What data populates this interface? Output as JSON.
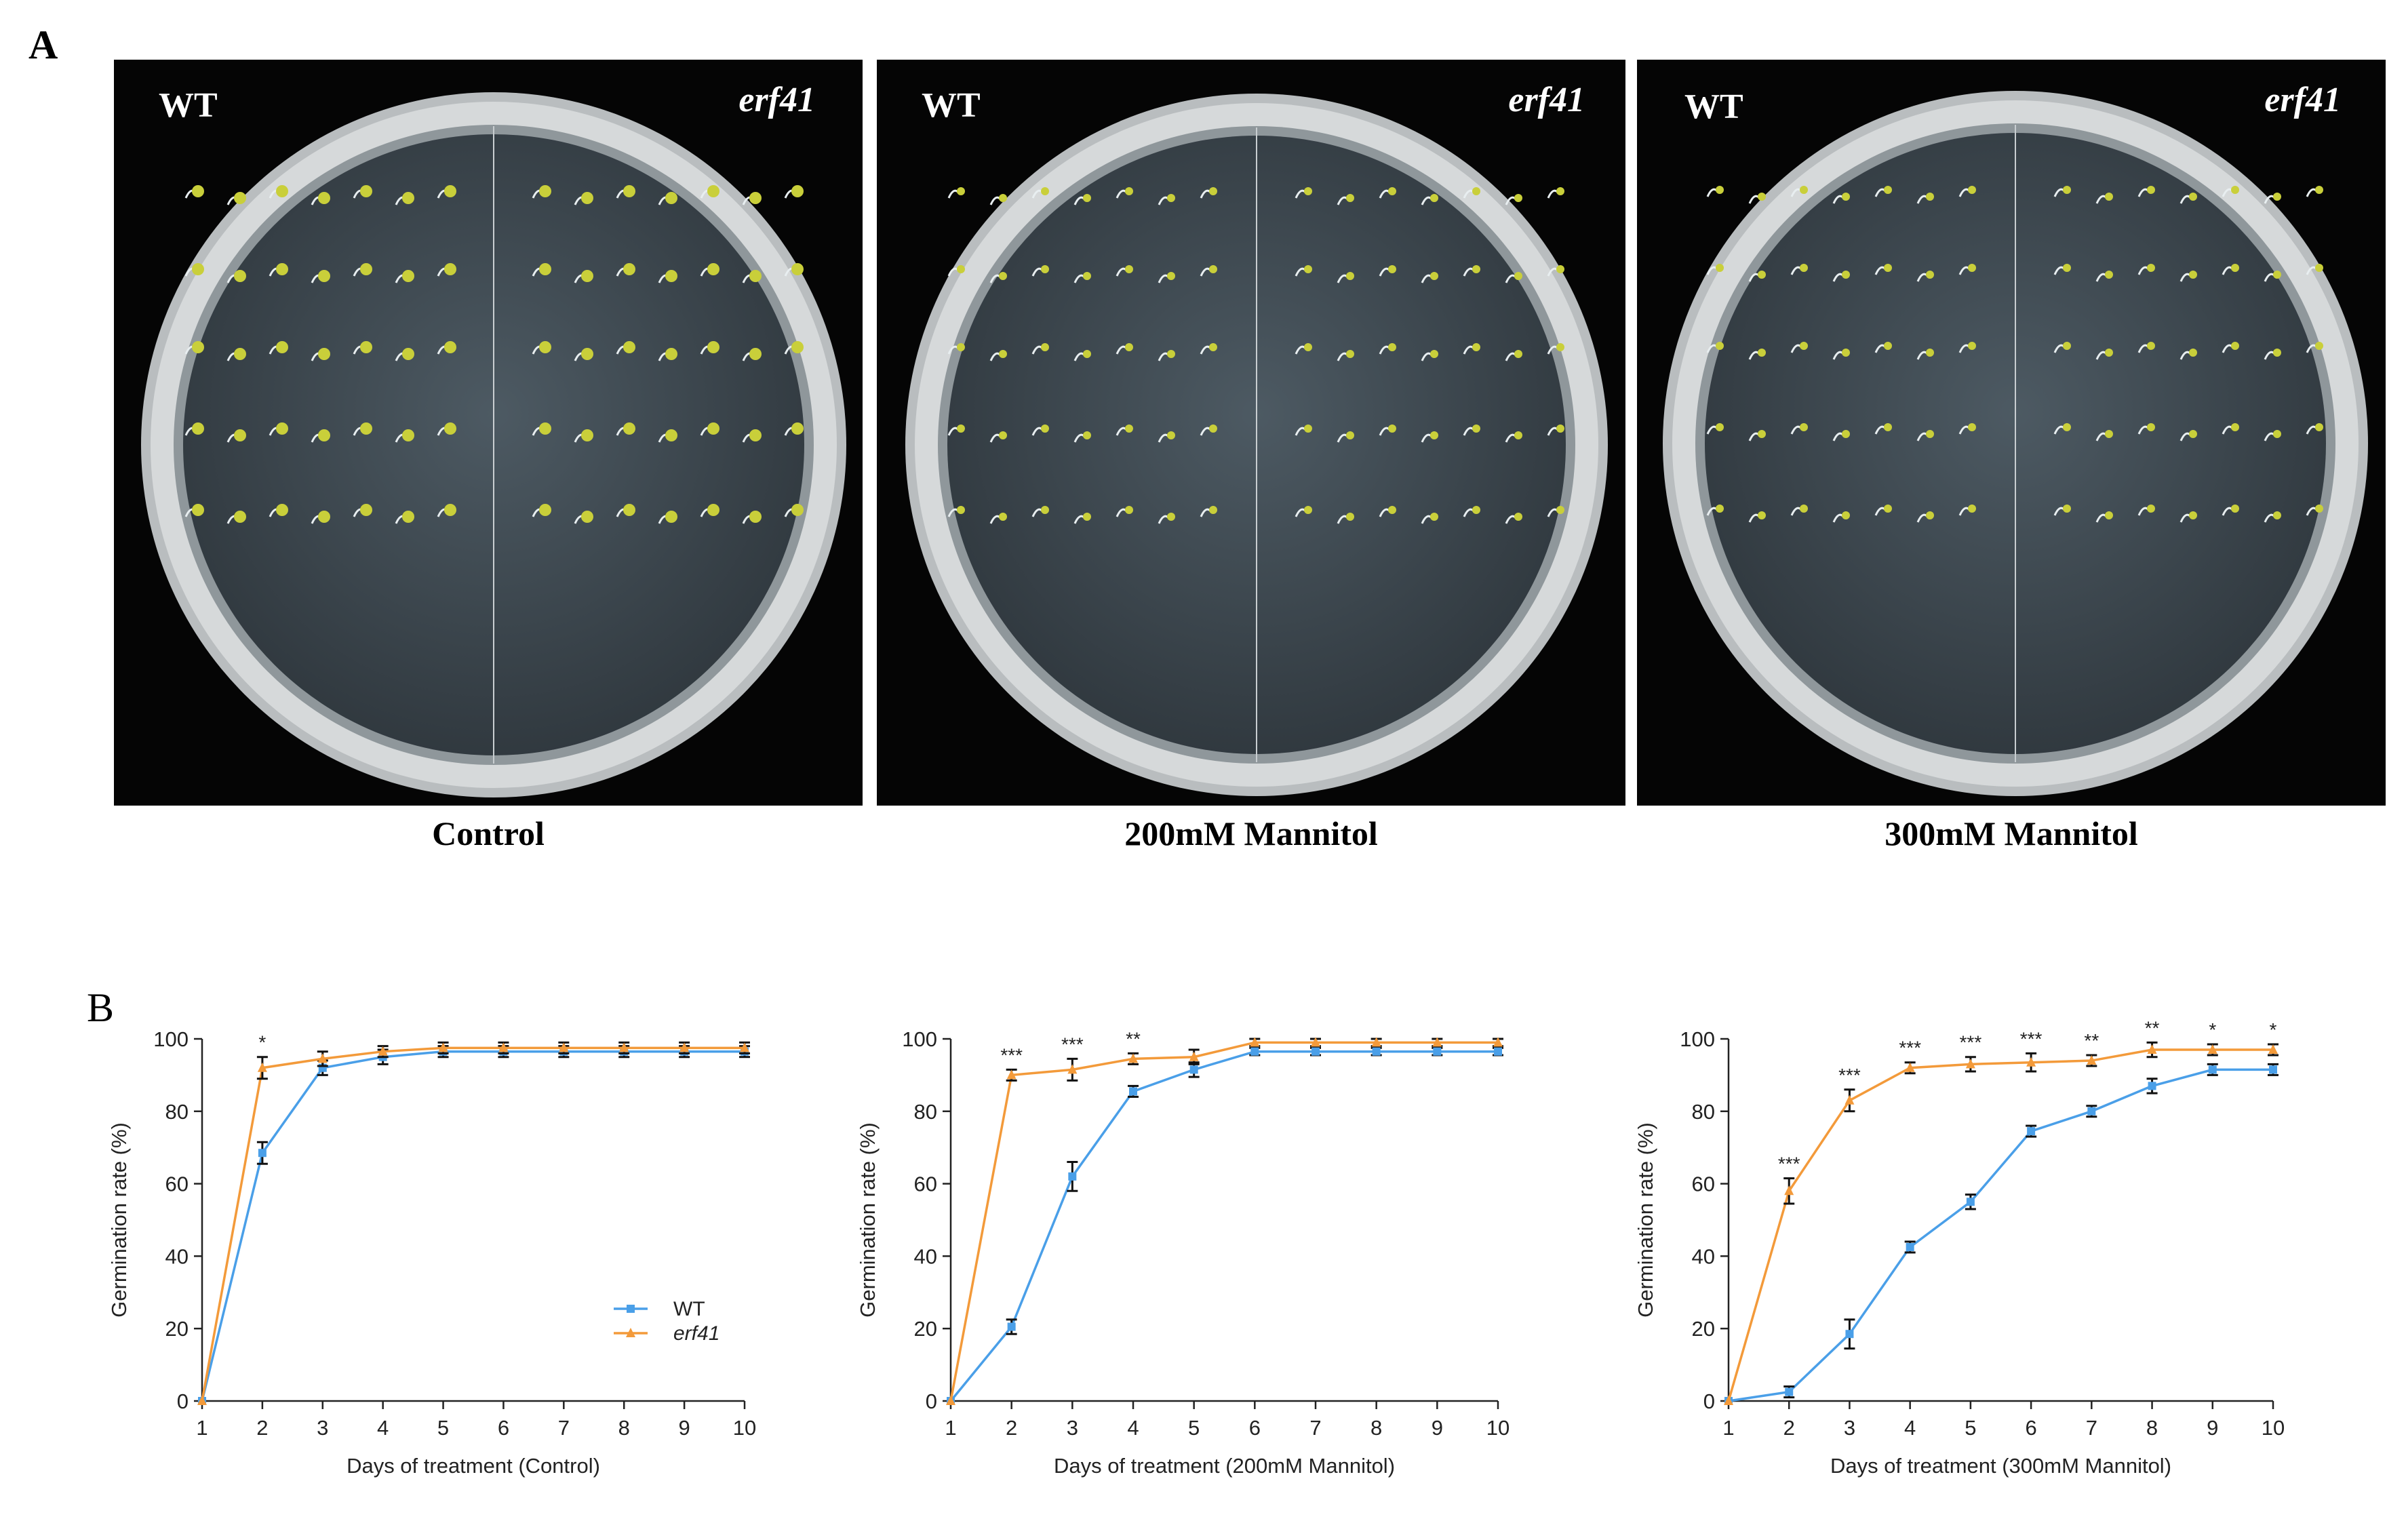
{
  "panels": {
    "a": "A",
    "b": "B"
  },
  "photos": [
    {
      "left_label": "WT",
      "right_label": "erf41",
      "caption": "Control"
    },
    {
      "left_label": "WT",
      "right_label": "erf41",
      "caption": "200mM Mannitol"
    },
    {
      "left_label": "WT",
      "right_label": "erf41",
      "caption": "300mM Mannitol"
    }
  ],
  "colors": {
    "wt": "#4a9fe8",
    "erf41": "#f39a3a",
    "seedling": "#c9cf3a"
  },
  "chart_data": [
    {
      "type": "line",
      "xlabel": "Days of treatment (Control)",
      "ylabel": "Germination rate (%)",
      "x": [
        1,
        2,
        3,
        4,
        5,
        6,
        7,
        8,
        9,
        10
      ],
      "xlim": [
        1,
        10
      ],
      "ylim": [
        0,
        100
      ],
      "yticks": [
        0,
        20,
        40,
        60,
        80,
        100
      ],
      "legend": {
        "placement": "center-right",
        "entries": [
          "WT",
          "erf41"
        ]
      },
      "series": [
        {
          "name": "WT",
          "marker": "square",
          "values": [
            0,
            68.5,
            92,
            95,
            96.5,
            96.5,
            96.5,
            96.5,
            96.5,
            96.5
          ],
          "errors": [
            0,
            3,
            2,
            2,
            1.5,
            1.5,
            1.5,
            1.5,
            1.5,
            1.5
          ]
        },
        {
          "name": "erf41",
          "marker": "triangle",
          "values": [
            0,
            92,
            94.5,
            96.5,
            97.5,
            97.5,
            97.5,
            97.5,
            97.5,
            97.5
          ],
          "errors": [
            0,
            3,
            2,
            1.5,
            1.5,
            1.5,
            1.5,
            1.5,
            1.5,
            1.5
          ]
        }
      ],
      "significance": [
        "",
        "*",
        "",
        "",
        "",
        "",
        "",
        "",
        "",
        ""
      ]
    },
    {
      "type": "line",
      "xlabel": "Days of treatment (200mM Mannitol)",
      "ylabel": "Germination rate (%)",
      "x": [
        1,
        2,
        3,
        4,
        5,
        6,
        7,
        8,
        9,
        10
      ],
      "xlim": [
        1,
        10
      ],
      "ylim": [
        0,
        100
      ],
      "yticks": [
        0,
        20,
        40,
        60,
        80,
        100
      ],
      "series": [
        {
          "name": "WT",
          "marker": "square",
          "values": [
            0,
            20.5,
            62,
            85.5,
            91.5,
            96.5,
            96.5,
            96.5,
            96.5,
            96.5
          ],
          "errors": [
            0,
            2,
            4,
            1.5,
            2,
            1,
            1,
            1,
            1,
            1
          ]
        },
        {
          "name": "erf41",
          "marker": "triangle",
          "values": [
            0,
            90,
            91.5,
            94.5,
            95,
            99,
            99,
            99,
            99,
            99
          ],
          "errors": [
            0,
            1.5,
            3,
            1.5,
            2,
            1,
            1,
            1,
            1,
            1
          ]
        }
      ],
      "significance": [
        "",
        "***",
        "***",
        "**",
        "",
        "",
        "",
        "",
        "",
        ""
      ]
    },
    {
      "type": "line",
      "xlabel": "Days of treatment (300mM Mannitol)",
      "ylabel": "Germination rate (%)",
      "x": [
        1,
        2,
        3,
        4,
        5,
        6,
        7,
        8,
        9,
        10
      ],
      "xlim": [
        1,
        10
      ],
      "ylim": [
        0,
        100
      ],
      "yticks": [
        0,
        20,
        40,
        60,
        80,
        100
      ],
      "series": [
        {
          "name": "WT",
          "marker": "square",
          "values": [
            0,
            2.5,
            18.5,
            42.5,
            55,
            74.5,
            80,
            87,
            91.5,
            91.5
          ],
          "errors": [
            0,
            1.5,
            4,
            1.5,
            2,
            1.5,
            1.5,
            2,
            1.5,
            1.5
          ]
        },
        {
          "name": "erf41",
          "marker": "triangle",
          "values": [
            0,
            58,
            83,
            92,
            93,
            93.5,
            94,
            97,
            97,
            97
          ],
          "errors": [
            0,
            3.5,
            3,
            1.5,
            2,
            2.5,
            1.5,
            2,
            1.5,
            1.5
          ]
        }
      ],
      "significance": [
        "",
        "***",
        "***",
        "***",
        "***",
        "***",
        "**",
        "**",
        "*",
        "*"
      ]
    }
  ]
}
